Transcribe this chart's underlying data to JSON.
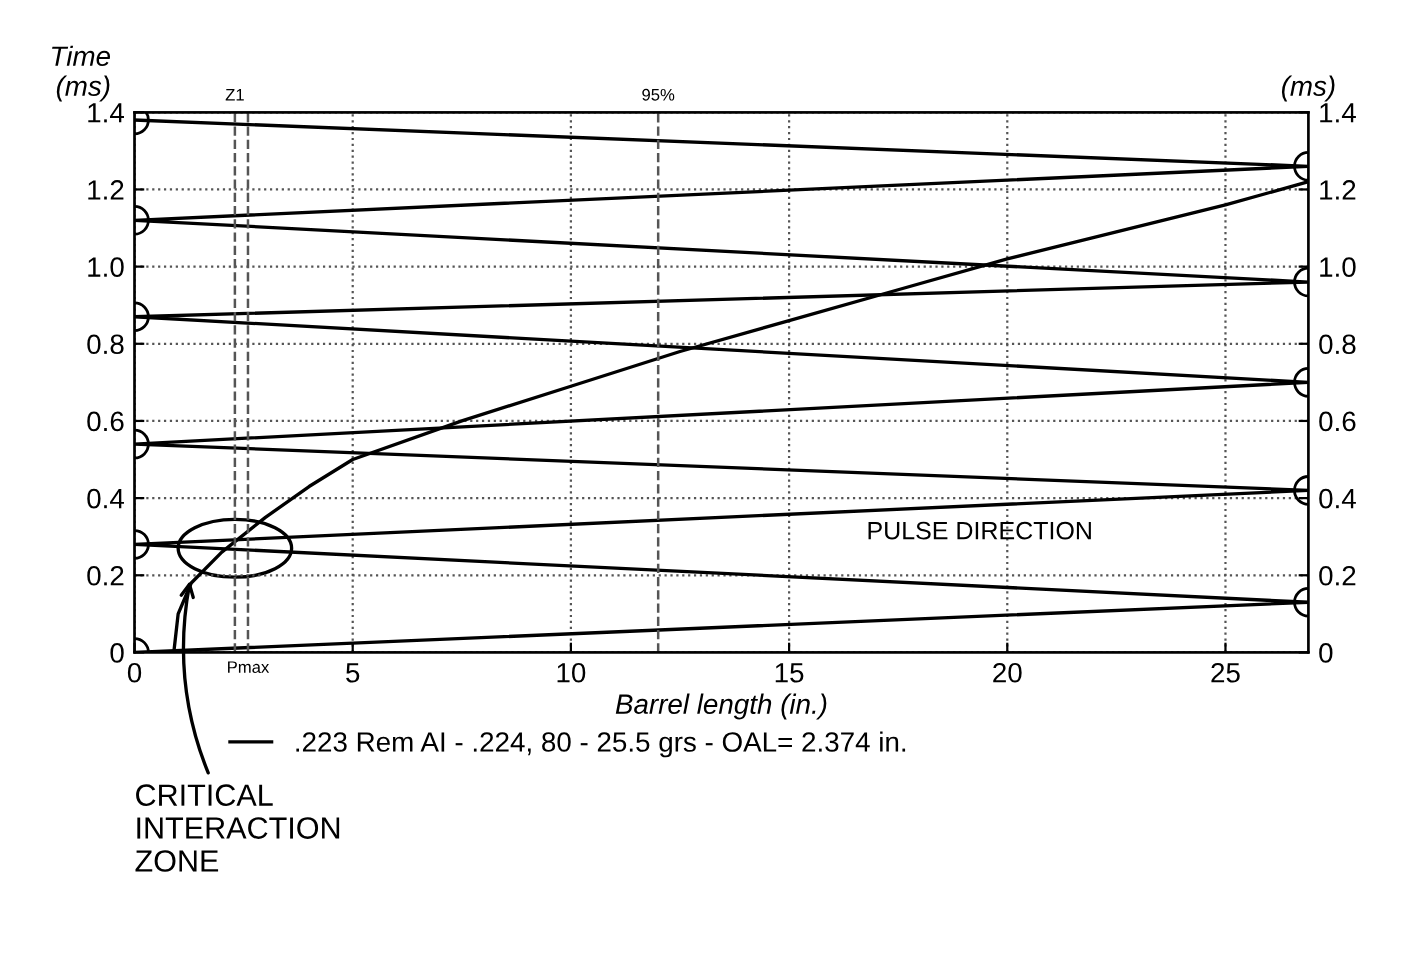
{
  "chart_data": {
    "type": "line",
    "xlabel": "Barrel length (in.)",
    "ylabel": "Time\n(ms)",
    "y2label": "(ms)",
    "xlim": [
      0,
      26.9
    ],
    "xticks": [
      0,
      5,
      10,
      15,
      20,
      25
    ],
    "ylim": [
      0,
      1.4
    ],
    "yticks": [
      0,
      0.2,
      0.4,
      0.6,
      0.8,
      {
        "value": 1.0,
        "label": "1.0"
      },
      1.2,
      1.4
    ],
    "y2lim": [
      0,
      1.4
    ],
    "y2ticks": [
      0,
      0.2,
      0.4,
      0.6,
      0.8,
      {
        "value": 1.0,
        "label": "1.0"
      },
      1.2,
      1.4
    ],
    "grid": true,
    "legend": "bottom",
    "series": [
      {
        "color": "#000000",
        "marker": "circle",
        "x": [
          0,
          26.9,
          0,
          26.9,
          0,
          26.9,
          0,
          26.9,
          0,
          26.9,
          0
        ],
        "values": [
          0,
          0.13,
          0.28,
          0.42,
          0.54,
          0.7,
          0.87,
          0.96,
          1.12,
          1.26,
          1.38
        ]
      },
      {
        "name": ".223 Rem AI - .224, 80 - 25.5 grs - OAL= 2.374 in.",
        "color": "#000000",
        "marker": "none",
        "x": [
          0.9,
          1.0,
          1.3,
          2,
          3,
          4,
          5,
          7.5,
          10,
          12.5,
          15,
          17.5,
          20,
          22.5,
          25,
          26.9
        ],
        "values": [
          0,
          0.1,
          0.18,
          0.26,
          0.35,
          0.43,
          0.5,
          0.6,
          0.69,
          0.78,
          0.86,
          0.94,
          1.02,
          1.09,
          1.16,
          1.22
        ]
      }
    ],
    "ref_lines": [
      {
        "axis": "x",
        "value": 2.3,
        "line_style": "dashed",
        "color": "#555555"
      },
      {
        "axis": "x",
        "value": 2.6,
        "line_style": "dashed",
        "color": "#555555"
      },
      {
        "axis": "x",
        "value": 12,
        "line_style": "dashed",
        "color": "#555555"
      }
    ],
    "annotations": [
      {
        "text": "CRITICAL\nINTERACTION\nZONE",
        "x": 1.3,
        "y": 0.2
      },
      "PULSE DIRECTION",
      {
        "text": "Z1",
        "x": 2.3,
        "y": 1.4
      },
      {
        "text": "Pmax",
        "x": 2.6,
        "y": 0
      },
      {
        "text": "95%",
        "x": 12,
        "y": 1.4
      }
    ]
  }
}
